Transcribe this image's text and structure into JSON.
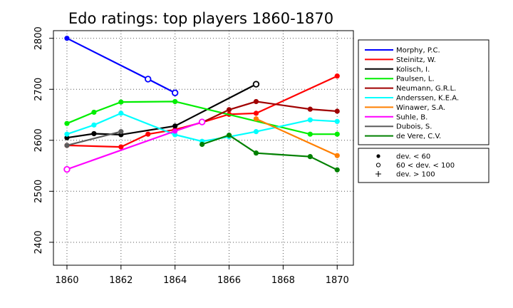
{
  "chart_data": {
    "type": "line",
    "title": "Edo ratings: top players 1860-1870",
    "xlabel": "",
    "ylabel": "",
    "xlim": [
      1859.5,
      1870.6
    ],
    "ylim": [
      2355,
      2815
    ],
    "x_ticks": [
      "1860",
      "1862",
      "1864",
      "1866",
      "1868",
      "1870"
    ],
    "y_ticks": [
      "2400",
      "2500",
      "2600",
      "2700",
      "2800"
    ],
    "grid": "dotted",
    "legend_position": "right",
    "series": [
      {
        "name": "Morphy, P.C.",
        "color": "#0000ff",
        "x": [
          1860,
          1863,
          1864
        ],
        "y": [
          2800,
          2720,
          2693
        ],
        "dev": [
          "lt60",
          "mid",
          "mid"
        ]
      },
      {
        "name": "Steinitz, W.",
        "color": "#ff0000",
        "x": [
          1860,
          1862,
          1863,
          1864,
          1865,
          1866,
          1867,
          1870
        ],
        "y": [
          2590,
          2587,
          2612,
          2621,
          2635,
          2651,
          2653,
          2726
        ],
        "dev": [
          "lt60",
          "lt60",
          "lt60",
          "lt60",
          "lt60",
          "lt60",
          "lt60",
          "lt60"
        ]
      },
      {
        "name": "Kolisch, I.",
        "color": "#000000",
        "x": [
          1860,
          1861,
          1862,
          1864,
          1867
        ],
        "y": [
          2605,
          2613,
          2611,
          2628,
          2710
        ],
        "dev": [
          "lt60",
          "lt60",
          "lt60",
          "lt60",
          "mid"
        ]
      },
      {
        "name": "Paulsen, L.",
        "color": "#00ee00",
        "x": [
          1860,
          1861,
          1862,
          1864,
          1869,
          1870
        ],
        "y": [
          2633,
          2655,
          2675,
          2676,
          2612,
          2612
        ],
        "dev": [
          "lt60",
          "lt60",
          "lt60",
          "lt60",
          "lt60",
          "lt60"
        ]
      },
      {
        "name": "Neumann, G.R.L.",
        "color": "#a00000",
        "x": [
          1865,
          1866,
          1867,
          1869,
          1870
        ],
        "y": [
          2635,
          2660,
          2676,
          2661,
          2657
        ],
        "dev": [
          "lt60",
          "lt60",
          "lt60",
          "lt60",
          "lt60"
        ]
      },
      {
        "name": "Anderssen, K.E.A.",
        "color": "#00ffff",
        "x": [
          1860,
          1861,
          1862,
          1864,
          1865,
          1866,
          1867,
          1869,
          1870
        ],
        "y": [
          2612,
          2630,
          2653,
          2611,
          2598,
          2607,
          2617,
          2640,
          2637
        ],
        "dev": [
          "lt60",
          "lt60",
          "lt60",
          "lt60",
          "lt60",
          "lt60",
          "lt60",
          "lt60",
          "lt60"
        ]
      },
      {
        "name": "Winawer, S.A.",
        "color": "#ff7f00",
        "x": [
          1867,
          1870
        ],
        "y": [
          2642,
          2570
        ],
        "dev": [
          "lt60",
          "lt60"
        ]
      },
      {
        "name": "Suhle, B.",
        "color": "#ff00ff",
        "x": [
          1860,
          1864,
          1865
        ],
        "y": [
          2543,
          2618,
          2636
        ],
        "dev": [
          "mid",
          "lt60",
          "mid"
        ]
      },
      {
        "name": "Dubois, S.",
        "color": "#5c5c5c",
        "x": [
          1860,
          1862
        ],
        "y": [
          2590,
          2617
        ],
        "dev": [
          "lt60",
          "lt60"
        ]
      },
      {
        "name": "de Vere, C.V.",
        "color": "#008000",
        "x": [
          1865,
          1866,
          1867,
          1869,
          1870
        ],
        "y": [
          2592,
          2610,
          2575,
          2568,
          2542
        ],
        "dev": [
          "lt60",
          "lt60",
          "lt60",
          "lt60",
          "lt60"
        ]
      }
    ],
    "symbol_legend": [
      {
        "symbol": "dot",
        "label": "dev. < 60"
      },
      {
        "symbol": "circle",
        "label": "60 < dev. < 100"
      },
      {
        "symbol": "plus",
        "label": "dev. > 100"
      }
    ]
  }
}
